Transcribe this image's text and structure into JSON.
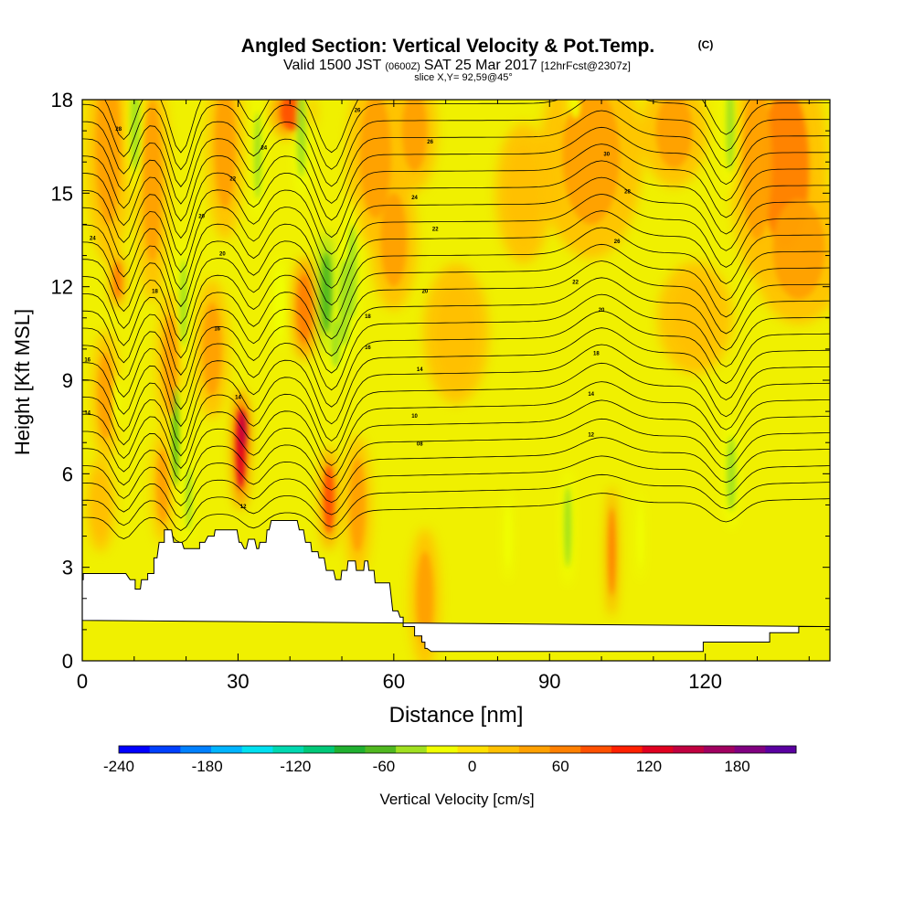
{
  "chart_data": {
    "type": "heatmap",
    "title": "Angled Section: Vertical Velocity & Pot.Temp.",
    "title_suffix": "(C)",
    "subtitle_prefix": "Valid 1500 JST",
    "subtitle_small": "(0600Z)",
    "subtitle_date": "SAT 25 Mar 2017",
    "subtitle_fcst": "[12hrFcst@2307z]",
    "slice_label": "slice X,Y= 92,59@45°",
    "xlabel": "Distance [nm]",
    "ylabel": "Height [Kft MSL]",
    "xlim": [
      0,
      144
    ],
    "ylim": [
      0,
      18
    ],
    "x_ticks": [
      "0",
      "30",
      "60",
      "90",
      "120"
    ],
    "x_tick_values": [
      0,
      30,
      60,
      90,
      120
    ],
    "y_ticks": [
      "0",
      "3",
      "6",
      "9",
      "12",
      "15",
      "18"
    ],
    "y_tick_values": [
      0,
      3,
      6,
      9,
      12,
      15,
      18
    ],
    "colorbar": {
      "label": "Vertical Velocity [cm/s]",
      "range": [
        -240,
        220
      ],
      "ticks": [
        "-240",
        "-180",
        "-120",
        "-60",
        "0",
        "60",
        "120",
        "180"
      ],
      "tick_values": [
        -240,
        -180,
        -120,
        -60,
        0,
        60,
        120,
        180
      ],
      "colors": [
        "#0000ff",
        "#0040ff",
        "#0080ff",
        "#00b4ff",
        "#00e0f0",
        "#00d8b0",
        "#00c878",
        "#20b030",
        "#50b820",
        "#a0e020",
        "#f0ff00",
        "#ffe000",
        "#ffc000",
        "#ffa000",
        "#ff8000",
        "#ff5000",
        "#ff2000",
        "#e00020",
        "#c00040",
        "#a00060",
        "#800080",
        "#5a00a0"
      ]
    },
    "background_color": "#f0f000",
    "terrain_color": "#ffffff",
    "terrain": {
      "x": [
        0,
        0.2,
        0.2,
        1,
        1,
        3,
        3,
        5,
        5,
        6,
        6,
        8.4,
        9.2,
        10.2,
        10.2,
        11.2,
        11.4,
        12.6,
        12.6,
        13.8,
        13.8,
        14.4,
        14.8,
        15.8,
        15.8,
        16.8,
        16.8,
        17.2,
        17.6,
        19.2,
        19.6,
        21.2,
        21.2,
        22.6,
        22.6,
        23.6,
        24.2,
        25.4,
        25.6,
        26.8,
        26.8,
        28,
        28,
        29.8,
        30.2,
        30.6,
        31.2,
        31.6,
        32,
        33.2,
        33.6,
        34,
        34.2,
        35.4,
        35.6,
        36,
        36.4,
        37,
        37.4,
        38.2,
        38.6,
        41.4,
        41.8,
        42.6,
        43,
        44,
        44.2,
        45.4,
        45.6,
        46.6,
        47,
        48.4,
        48.8,
        49.8,
        50,
        51,
        51.2,
        52.6,
        52.8,
        54.2,
        54.4,
        55,
        55.2,
        56.2,
        56.4,
        59.2,
        59.8,
        60.8,
        61.2,
        61.8,
        61.8,
        64,
        64,
        65.4,
        65.4,
        66,
        66,
        66.4,
        67.2,
        68.8,
        70,
        70,
        114,
        114,
        114.8,
        117.8,
        117.8,
        119.6,
        119.6,
        121.2,
        121.2,
        123.2,
        123.2,
        125.4,
        125.4,
        127.2,
        127.2,
        130.2,
        130.2,
        132.4,
        132.4,
        135.8,
        135.8,
        137.2,
        137.2,
        138,
        138,
        144,
        144,
        0
      ],
      "y": [
        2.6,
        2.6,
        2.8,
        2.8,
        2.8,
        2.8,
        2.8,
        2.8,
        2.8,
        2.8,
        2.8,
        2.8,
        2.6,
        2.6,
        2.3,
        2.3,
        2.6,
        2.6,
        2.8,
        2.8,
        3.3,
        3.3,
        3.8,
        3.8,
        4.2,
        4.2,
        4.2,
        4.2,
        3.8,
        3.8,
        3.6,
        3.6,
        3.6,
        3.6,
        3.8,
        3.8,
        4,
        4,
        4.2,
        4.2,
        4.2,
        4.2,
        4.2,
        4.2,
        3.8,
        3.8,
        3.6,
        3.6,
        3.9,
        3.9,
        3.6,
        3.6,
        3.8,
        3.8,
        4.2,
        4.2,
        4.5,
        4.5,
        4.5,
        4.5,
        4.5,
        4.5,
        4.2,
        4.2,
        3.8,
        3.8,
        3.5,
        3.5,
        3.3,
        3.3,
        2.9,
        2.9,
        2.6,
        2.6,
        2.9,
        2.9,
        3.2,
        3.2,
        2.9,
        2.9,
        3.2,
        3.2,
        2.9,
        2.9,
        2.5,
        2.5,
        1.6,
        1.6,
        1.4,
        1.4,
        1.1,
        1.1,
        0.8,
        0.8,
        0.6,
        0.6,
        0.4,
        0.4,
        0.3,
        0.3,
        0.3,
        0.3,
        0.3,
        0.3,
        0.3,
        0.3,
        0.3,
        0.3,
        0.6,
        0.6,
        0.6,
        0.6,
        0.6,
        0.6,
        0.6,
        0.6,
        0.6,
        0.6,
        0.6,
        0.6,
        0.9,
        0.9,
        0.9,
        0.9,
        0.9,
        0.9,
        1.1,
        1.1,
        1.1,
        1.3,
        1.3,
        1.3,
        0,
        0
      ]
    },
    "updrafts": [
      {
        "x": 30.5,
        "y": 6.8,
        "wx": 0.9,
        "wy": 1.3,
        "w": 130
      },
      {
        "x": 31.0,
        "y": 7.4,
        "wx": 0.6,
        "wy": 0.6,
        "w": 150
      },
      {
        "x": 47.5,
        "y": 5.2,
        "wx": 1.0,
        "wy": 1.1,
        "w": 80
      },
      {
        "x": 42.8,
        "y": 11.3,
        "wx": 1.4,
        "wy": 1.1,
        "w": 60
      },
      {
        "x": 40.5,
        "y": 17.6,
        "wx": 2.4,
        "wy": 0.6,
        "w": 90
      },
      {
        "x": 13.5,
        "y": 15.4,
        "wx": 1.8,
        "wy": 2.6,
        "w": 50
      },
      {
        "x": 6.8,
        "y": 12.2,
        "wx": 0.8,
        "wy": 0.6,
        "w": 60
      },
      {
        "x": 15.5,
        "y": 5.6,
        "wx": 1.2,
        "wy": 1.2,
        "w": 50
      },
      {
        "x": 56.5,
        "y": 16.2,
        "wx": 3.0,
        "wy": 2.0,
        "w": 45
      },
      {
        "x": 64.0,
        "y": 17.0,
        "wx": 2.4,
        "wy": 1.3,
        "w": 40
      },
      {
        "x": 98.0,
        "y": 16.2,
        "wx": 5.5,
        "wy": 2.2,
        "w": 40
      },
      {
        "x": 135.5,
        "y": 15.8,
        "wx": 4.5,
        "wy": 2.6,
        "w": 55
      },
      {
        "x": 130.0,
        "y": 16.0,
        "wx": 2.8,
        "wy": 2.5,
        "w": 45
      },
      {
        "x": 138.0,
        "y": 13.2,
        "wx": 5.0,
        "wy": 1.6,
        "w": 35
      },
      {
        "x": 5.0,
        "y": 16.5,
        "wx": 2.4,
        "wy": 2.5,
        "w": 45
      },
      {
        "x": 27.5,
        "y": 16.5,
        "wx": 2.0,
        "wy": 2.0,
        "w": 45
      },
      {
        "x": 17.0,
        "y": 9.5,
        "wx": 1.5,
        "wy": 1.6,
        "w": 35
      },
      {
        "x": 102.0,
        "y": 3.5,
        "wx": 0.6,
        "wy": 1.4,
        "w": 60
      },
      {
        "x": 66.0,
        "y": 2.0,
        "wx": 1.6,
        "wy": 1.5,
        "w": 40
      },
      {
        "x": 85.0,
        "y": 15.0,
        "wx": 3.0,
        "wy": 1.5,
        "w": 30
      },
      {
        "x": 114.0,
        "y": 17.0,
        "wx": 3.5,
        "wy": 1.2,
        "w": 35
      },
      {
        "x": 60.0,
        "y": 13.5,
        "wx": 2.5,
        "wy": 1.5,
        "w": 35
      },
      {
        "x": 25.0,
        "y": 10.0,
        "wx": 1.8,
        "wy": 1.5,
        "w": 35
      },
      {
        "x": 4.5,
        "y": 8.5,
        "wx": 1.5,
        "wy": 1.4,
        "w": 35
      },
      {
        "x": 3.5,
        "y": 5.0,
        "wx": 1.5,
        "wy": 1.0,
        "w": 30
      },
      {
        "x": 53.0,
        "y": 5.0,
        "wx": 1.5,
        "wy": 1.5,
        "w": 35
      },
      {
        "x": 72.0,
        "y": 10.5,
        "wx": 3.5,
        "wy": 1.5,
        "w": 30
      },
      {
        "x": 118.0,
        "y": 11.0,
        "wx": 4.0,
        "wy": 1.2,
        "w": 30
      }
    ],
    "downdrafts": [
      {
        "x": 18.0,
        "y": 7.2,
        "wx": 0.6,
        "wy": 1.6,
        "w": -55
      },
      {
        "x": 20.5,
        "y": 5.2,
        "wx": 0.6,
        "wy": 1.0,
        "w": -45
      },
      {
        "x": 19.5,
        "y": 11.5,
        "wx": 0.7,
        "wy": 1.4,
        "w": -45
      },
      {
        "x": 10.2,
        "y": 17.2,
        "wx": 0.9,
        "wy": 1.5,
        "w": -50
      },
      {
        "x": 33.8,
        "y": 16.2,
        "wx": 0.7,
        "wy": 1.4,
        "w": -40
      },
      {
        "x": 42.2,
        "y": 17.0,
        "wx": 0.9,
        "wy": 1.5,
        "w": -50
      },
      {
        "x": 47.0,
        "y": 11.8,
        "wx": 1.0,
        "wy": 1.3,
        "w": -60
      },
      {
        "x": 50.5,
        "y": 11.5,
        "wx": 1.1,
        "wy": 1.4,
        "w": -50
      },
      {
        "x": 48.8,
        "y": 10.2,
        "wx": 0.9,
        "wy": 0.8,
        "w": -45
      },
      {
        "x": 124.8,
        "y": 17.2,
        "wx": 0.8,
        "wy": 1.5,
        "w": -45
      },
      {
        "x": 125.0,
        "y": 6.0,
        "wx": 0.9,
        "wy": 1.2,
        "w": -40
      },
      {
        "x": 93.5,
        "y": 4.3,
        "wx": 0.7,
        "wy": 1.3,
        "w": -40
      },
      {
        "x": 82.0,
        "y": 4.0,
        "wx": 0.5,
        "wy": 1.0,
        "w": -25
      },
      {
        "x": 107.5,
        "y": 4.0,
        "wx": 0.4,
        "wy": 1.0,
        "w": -25
      },
      {
        "x": 38.0,
        "y": 11.5,
        "wx": 0.8,
        "wy": 1.0,
        "w": -30
      },
      {
        "x": 52.0,
        "y": 12.5,
        "wx": 0.9,
        "wy": 1.5,
        "w": -35
      },
      {
        "x": 6.5,
        "y": 8.3,
        "wx": 0.5,
        "wy": 0.6,
        "w": -30
      },
      {
        "x": 95.0,
        "y": 17.8,
        "wx": 0.8,
        "wy": 0.4,
        "w": -25
      }
    ],
    "isentrope_count": 26,
    "isentrope_labels": [
      {
        "x": 7,
        "y": 17.0,
        "text": "28"
      },
      {
        "x": 2,
        "y": 13.5,
        "text": "24"
      },
      {
        "x": 1,
        "y": 9.6,
        "text": "16"
      },
      {
        "x": 1,
        "y": 7.9,
        "text": "14"
      },
      {
        "x": 23,
        "y": 14.2,
        "text": "20"
      },
      {
        "x": 14,
        "y": 11.8,
        "text": "18"
      },
      {
        "x": 27,
        "y": 13.0,
        "text": "20"
      },
      {
        "x": 26,
        "y": 10.6,
        "text": "16"
      },
      {
        "x": 35,
        "y": 16.4,
        "text": "24"
      },
      {
        "x": 29,
        "y": 15.4,
        "text": "22"
      },
      {
        "x": 53,
        "y": 17.6,
        "text": "26"
      },
      {
        "x": 67,
        "y": 16.6,
        "text": "26"
      },
      {
        "x": 64,
        "y": 14.8,
        "text": "24"
      },
      {
        "x": 68,
        "y": 13.8,
        "text": "22"
      },
      {
        "x": 66,
        "y": 11.8,
        "text": "20"
      },
      {
        "x": 55,
        "y": 11.0,
        "text": "18"
      },
      {
        "x": 55,
        "y": 10.0,
        "text": "16"
      },
      {
        "x": 65,
        "y": 9.3,
        "text": "14"
      },
      {
        "x": 64,
        "y": 7.8,
        "text": "10"
      },
      {
        "x": 65,
        "y": 6.9,
        "text": "08"
      },
      {
        "x": 30,
        "y": 8.4,
        "text": "14"
      },
      {
        "x": 31,
        "y": 4.9,
        "text": "12"
      },
      {
        "x": 101,
        "y": 16.2,
        "text": "30"
      },
      {
        "x": 105,
        "y": 15.0,
        "text": "28"
      },
      {
        "x": 103,
        "y": 13.4,
        "text": "26"
      },
      {
        "x": 95,
        "y": 12.1,
        "text": "22"
      },
      {
        "x": 100,
        "y": 11.2,
        "text": "20"
      },
      {
        "x": 99,
        "y": 9.8,
        "text": "18"
      },
      {
        "x": 98,
        "y": 8.5,
        "text": "14"
      },
      {
        "x": 98,
        "y": 7.2,
        "text": "12"
      }
    ]
  }
}
